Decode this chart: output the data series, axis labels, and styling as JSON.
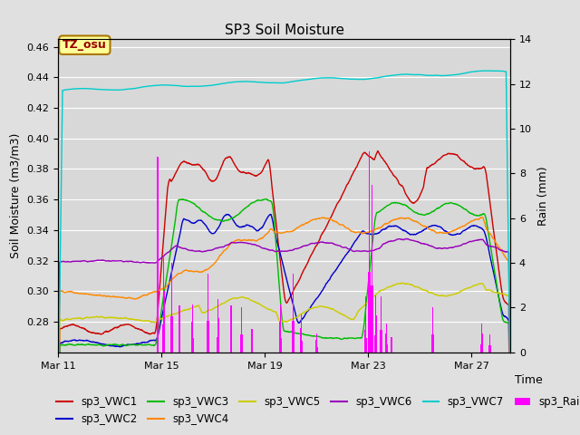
{
  "title": "SP3 Soil Moisture",
  "ylabel_left": "Soil Moisture (m3/m3)",
  "ylabel_right": "Rain (mm)",
  "xlabel": "Time",
  "xlim_days": [
    0,
    17.5
  ],
  "ylim_left": [
    0.26,
    0.465
  ],
  "ylim_right": [
    0,
    14
  ],
  "xtick_labels": [
    "Mar 11",
    "Mar 15",
    "Mar 19",
    "Mar 23",
    "Mar 27"
  ],
  "xtick_positions": [
    0,
    4,
    8,
    12,
    16
  ],
  "ytick_left": [
    0.28,
    0.3,
    0.32,
    0.34,
    0.36,
    0.38,
    0.4,
    0.42,
    0.44,
    0.46
  ],
  "ytick_right": [
    0,
    2,
    4,
    6,
    8,
    10,
    12,
    14
  ],
  "colors": {
    "sp3_VWC1": "#cc0000",
    "sp3_VWC2": "#0000cc",
    "sp3_VWC3": "#00bb00",
    "sp3_VWC4": "#ff8800",
    "sp3_VWC5": "#cccc00",
    "sp3_VWC6": "#9900bb",
    "sp3_VWC7": "#00cccc",
    "sp3_Rain": "#ff00ff"
  },
  "fig_bg_color": "#e0e0e0",
  "plot_bg_color": "#d8d8d8",
  "annotation_box_color": "#ffff99",
  "annotation_box_edge": "#aa7700",
  "annotation_text": "TZ_osu",
  "annotation_text_color": "#990000"
}
